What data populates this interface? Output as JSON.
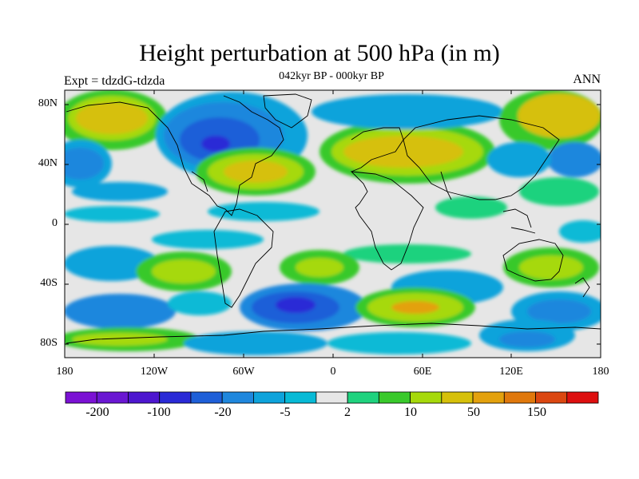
{
  "title": "Height perturbation at 500 hPa (in m)",
  "subtitle": "042kyr BP - 000kyr BP",
  "left_label": "Expt = tdzdG-tdzda",
  "right_label": "ANN",
  "lat_labels": [
    "80N",
    "40N",
    "0",
    "40S",
    "80S"
  ],
  "lon_labels": [
    "180",
    "120W",
    "60W",
    "0",
    "60E",
    "120E",
    "180"
  ],
  "colorbar": {
    "colors": [
      "#7b12d4",
      "#6a17d2",
      "#4d16cf",
      "#2a2ad6",
      "#1e5fd8",
      "#1f87dd",
      "#0ea3db",
      "#07bad6",
      "#e6e6e6",
      "#1fd27e",
      "#39c92b",
      "#a6d90b",
      "#d6c00a",
      "#e3a10d",
      "#e0780c",
      "#db4711",
      "#dd0f0f"
    ],
    "labels": [
      "-200",
      "-100",
      "-20",
      "-5",
      "2",
      "10",
      "50",
      "150"
    ]
  },
  "map_colors": {
    "ocean": "#e6e6e6",
    "coast": "#000000"
  }
}
